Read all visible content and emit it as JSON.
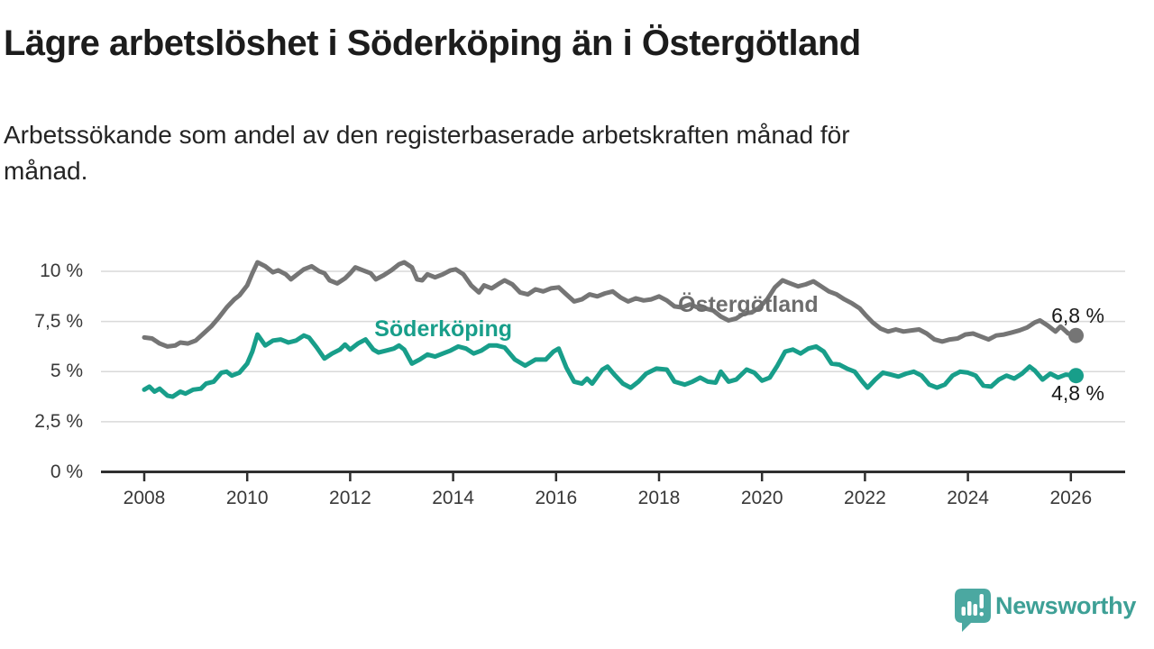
{
  "header": {
    "title": "Lägre arbetslöshet i Söderköping än i Östergötland",
    "subtitle_line1": "Arbetssökande som andel av den registerbaserade arbetskraften månad för",
    "subtitle_line2": "månad."
  },
  "branding": {
    "name": "Newsworthy",
    "text_color": "#3EA096",
    "icon": "newsworthy-speech-bubble-bar-chart-icon",
    "icon_color": "#4BA8A1"
  },
  "chart_data": {
    "type": "line",
    "unit": "%",
    "grid": true,
    "colors": {
      "gridline": "#d9d9d9",
      "axis": "#2f2f2f",
      "end_label_text": "#191919"
    },
    "x_axis": {
      "ticks": [
        2008,
        2010,
        2012,
        2014,
        2016,
        2018,
        2020,
        2022,
        2024,
        2026
      ],
      "range": [
        2007.8,
        2027.1
      ]
    },
    "y_axis": {
      "range": [
        0,
        11.7
      ],
      "ticks": [
        {
          "value": 0,
          "label": "0 %"
        },
        {
          "value": 2.5,
          "label": "2,5 %"
        },
        {
          "value": 5,
          "label": "5 %"
        },
        {
          "value": 7.5,
          "label": "7,5 %"
        },
        {
          "value": 10,
          "label": "10 %"
        }
      ]
    },
    "series": [
      {
        "name": "Östergötland",
        "color": "#757575",
        "label_color": "#6D6D6D",
        "label_pos": {
          "t": 2018.37,
          "v": 8.34
        },
        "end_label": "6,8 %",
        "end_value": 6.8,
        "end_label_side": "above",
        "points": [
          [
            2008.0,
            6.7
          ],
          [
            2008.15,
            6.65
          ],
          [
            2008.3,
            6.4
          ],
          [
            2008.45,
            6.25
          ],
          [
            2008.6,
            6.3
          ],
          [
            2008.7,
            6.45
          ],
          [
            2008.85,
            6.4
          ],
          [
            2009.0,
            6.55
          ],
          [
            2009.15,
            6.9
          ],
          [
            2009.3,
            7.25
          ],
          [
            2009.45,
            7.7
          ],
          [
            2009.6,
            8.2
          ],
          [
            2009.75,
            8.6
          ],
          [
            2009.85,
            8.8
          ],
          [
            2010.0,
            9.3
          ],
          [
            2010.1,
            9.9
          ],
          [
            2010.2,
            10.45
          ],
          [
            2010.35,
            10.25
          ],
          [
            2010.5,
            9.95
          ],
          [
            2010.6,
            10.05
          ],
          [
            2010.75,
            9.85
          ],
          [
            2010.85,
            9.6
          ],
          [
            2011.0,
            9.9
          ],
          [
            2011.1,
            10.1
          ],
          [
            2011.25,
            10.25
          ],
          [
            2011.4,
            10.0
          ],
          [
            2011.5,
            9.9
          ],
          [
            2011.6,
            9.55
          ],
          [
            2011.75,
            9.4
          ],
          [
            2011.9,
            9.65
          ],
          [
            2012.0,
            9.9
          ],
          [
            2012.1,
            10.2
          ],
          [
            2012.25,
            10.05
          ],
          [
            2012.4,
            9.9
          ],
          [
            2012.5,
            9.6
          ],
          [
            2012.65,
            9.8
          ],
          [
            2012.8,
            10.05
          ],
          [
            2012.95,
            10.35
          ],
          [
            2013.05,
            10.45
          ],
          [
            2013.2,
            10.2
          ],
          [
            2013.3,
            9.6
          ],
          [
            2013.4,
            9.55
          ],
          [
            2013.5,
            9.85
          ],
          [
            2013.65,
            9.7
          ],
          [
            2013.8,
            9.85
          ],
          [
            2013.95,
            10.05
          ],
          [
            2014.05,
            10.1
          ],
          [
            2014.2,
            9.85
          ],
          [
            2014.35,
            9.3
          ],
          [
            2014.5,
            8.95
          ],
          [
            2014.6,
            9.3
          ],
          [
            2014.75,
            9.15
          ],
          [
            2014.9,
            9.4
          ],
          [
            2015.0,
            9.55
          ],
          [
            2015.15,
            9.35
          ],
          [
            2015.3,
            8.95
          ],
          [
            2015.45,
            8.85
          ],
          [
            2015.6,
            9.1
          ],
          [
            2015.75,
            9.0
          ],
          [
            2015.9,
            9.15
          ],
          [
            2016.05,
            9.2
          ],
          [
            2016.2,
            8.85
          ],
          [
            2016.35,
            8.5
          ],
          [
            2016.5,
            8.6
          ],
          [
            2016.65,
            8.85
          ],
          [
            2016.8,
            8.75
          ],
          [
            2016.95,
            8.9
          ],
          [
            2017.1,
            9.0
          ],
          [
            2017.25,
            8.7
          ],
          [
            2017.4,
            8.5
          ],
          [
            2017.55,
            8.65
          ],
          [
            2017.7,
            8.55
          ],
          [
            2017.85,
            8.6
          ],
          [
            2018.0,
            8.75
          ],
          [
            2018.15,
            8.55
          ],
          [
            2018.3,
            8.25
          ],
          [
            2018.45,
            8.2
          ],
          [
            2018.6,
            8.35
          ],
          [
            2018.75,
            8.2
          ],
          [
            2018.9,
            8.15
          ],
          [
            2019.05,
            8.05
          ],
          [
            2019.2,
            7.75
          ],
          [
            2019.35,
            7.55
          ],
          [
            2019.5,
            7.65
          ],
          [
            2019.65,
            7.9
          ],
          [
            2019.8,
            7.95
          ],
          [
            2019.95,
            8.2
          ],
          [
            2020.1,
            8.6
          ],
          [
            2020.25,
            9.2
          ],
          [
            2020.4,
            9.55
          ],
          [
            2020.55,
            9.4
          ],
          [
            2020.7,
            9.25
          ],
          [
            2020.85,
            9.35
          ],
          [
            2021.0,
            9.5
          ],
          [
            2021.15,
            9.25
          ],
          [
            2021.3,
            9.0
          ],
          [
            2021.45,
            8.85
          ],
          [
            2021.6,
            8.6
          ],
          [
            2021.75,
            8.4
          ],
          [
            2021.9,
            8.15
          ],
          [
            2022.0,
            7.85
          ],
          [
            2022.15,
            7.45
          ],
          [
            2022.3,
            7.15
          ],
          [
            2022.45,
            7.0
          ],
          [
            2022.6,
            7.1
          ],
          [
            2022.75,
            7.0
          ],
          [
            2022.9,
            7.05
          ],
          [
            2023.05,
            7.1
          ],
          [
            2023.2,
            6.9
          ],
          [
            2023.35,
            6.6
          ],
          [
            2023.5,
            6.5
          ],
          [
            2023.65,
            6.6
          ],
          [
            2023.8,
            6.65
          ],
          [
            2023.95,
            6.85
          ],
          [
            2024.1,
            6.9
          ],
          [
            2024.25,
            6.75
          ],
          [
            2024.4,
            6.6
          ],
          [
            2024.55,
            6.8
          ],
          [
            2024.7,
            6.85
          ],
          [
            2024.85,
            6.95
          ],
          [
            2025.0,
            7.05
          ],
          [
            2025.15,
            7.2
          ],
          [
            2025.3,
            7.45
          ],
          [
            2025.4,
            7.55
          ],
          [
            2025.55,
            7.3
          ],
          [
            2025.7,
            7.0
          ],
          [
            2025.8,
            7.25
          ],
          [
            2025.95,
            6.9
          ],
          [
            2026.1,
            6.8
          ]
        ]
      },
      {
        "name": "Söderköping",
        "color": "#189E8A",
        "label_color": "#189E8A",
        "label_pos": {
          "t": 2012.47,
          "v": 7.12
        },
        "end_label": "4,8 %",
        "end_value": 4.8,
        "end_label_side": "below",
        "points": [
          [
            2008.0,
            4.1
          ],
          [
            2008.1,
            4.25
          ],
          [
            2008.2,
            4.0
          ],
          [
            2008.3,
            4.15
          ],
          [
            2008.45,
            3.8
          ],
          [
            2008.55,
            3.75
          ],
          [
            2008.7,
            4.0
          ],
          [
            2008.8,
            3.9
          ],
          [
            2008.95,
            4.1
          ],
          [
            2009.1,
            4.15
          ],
          [
            2009.2,
            4.4
          ],
          [
            2009.35,
            4.5
          ],
          [
            2009.5,
            4.95
          ],
          [
            2009.6,
            5.0
          ],
          [
            2009.7,
            4.8
          ],
          [
            2009.85,
            4.95
          ],
          [
            2010.0,
            5.4
          ],
          [
            2010.1,
            6.0
          ],
          [
            2010.2,
            6.85
          ],
          [
            2010.35,
            6.3
          ],
          [
            2010.5,
            6.55
          ],
          [
            2010.65,
            6.6
          ],
          [
            2010.8,
            6.45
          ],
          [
            2010.95,
            6.55
          ],
          [
            2011.1,
            6.8
          ],
          [
            2011.2,
            6.7
          ],
          [
            2011.35,
            6.2
          ],
          [
            2011.5,
            5.65
          ],
          [
            2011.65,
            5.9
          ],
          [
            2011.8,
            6.1
          ],
          [
            2011.9,
            6.35
          ],
          [
            2012.0,
            6.1
          ],
          [
            2012.15,
            6.4
          ],
          [
            2012.3,
            6.6
          ],
          [
            2012.45,
            6.1
          ],
          [
            2012.55,
            5.95
          ],
          [
            2012.7,
            6.05
          ],
          [
            2012.85,
            6.15
          ],
          [
            2012.95,
            6.3
          ],
          [
            2013.05,
            6.1
          ],
          [
            2013.2,
            5.4
          ],
          [
            2013.35,
            5.6
          ],
          [
            2013.5,
            5.85
          ],
          [
            2013.65,
            5.75
          ],
          [
            2013.8,
            5.9
          ],
          [
            2013.95,
            6.05
          ],
          [
            2014.1,
            6.25
          ],
          [
            2014.25,
            6.15
          ],
          [
            2014.4,
            5.9
          ],
          [
            2014.55,
            6.05
          ],
          [
            2014.7,
            6.3
          ],
          [
            2014.85,
            6.3
          ],
          [
            2015.0,
            6.2
          ],
          [
            2015.2,
            5.6
          ],
          [
            2015.4,
            5.3
          ],
          [
            2015.6,
            5.6
          ],
          [
            2015.8,
            5.6
          ],
          [
            2015.95,
            6.0
          ],
          [
            2016.05,
            6.15
          ],
          [
            2016.2,
            5.2
          ],
          [
            2016.35,
            4.5
          ],
          [
            2016.5,
            4.4
          ],
          [
            2016.6,
            4.65
          ],
          [
            2016.7,
            4.4
          ],
          [
            2016.9,
            5.1
          ],
          [
            2017.0,
            5.25
          ],
          [
            2017.15,
            4.8
          ],
          [
            2017.3,
            4.4
          ],
          [
            2017.45,
            4.2
          ],
          [
            2017.6,
            4.5
          ],
          [
            2017.75,
            4.9
          ],
          [
            2017.95,
            5.15
          ],
          [
            2018.15,
            5.1
          ],
          [
            2018.3,
            4.5
          ],
          [
            2018.5,
            4.35
          ],
          [
            2018.65,
            4.5
          ],
          [
            2018.8,
            4.7
          ],
          [
            2018.95,
            4.5
          ],
          [
            2019.1,
            4.45
          ],
          [
            2019.2,
            5.0
          ],
          [
            2019.35,
            4.5
          ],
          [
            2019.5,
            4.6
          ],
          [
            2019.7,
            5.1
          ],
          [
            2019.85,
            4.95
          ],
          [
            2020.0,
            4.55
          ],
          [
            2020.15,
            4.7
          ],
          [
            2020.3,
            5.3
          ],
          [
            2020.45,
            6.0
          ],
          [
            2020.6,
            6.1
          ],
          [
            2020.75,
            5.9
          ],
          [
            2020.9,
            6.15
          ],
          [
            2021.05,
            6.25
          ],
          [
            2021.2,
            6.0
          ],
          [
            2021.35,
            5.4
          ],
          [
            2021.5,
            5.35
          ],
          [
            2021.65,
            5.15
          ],
          [
            2021.8,
            5.0
          ],
          [
            2021.95,
            4.5
          ],
          [
            2022.05,
            4.2
          ],
          [
            2022.2,
            4.6
          ],
          [
            2022.35,
            4.95
          ],
          [
            2022.5,
            4.85
          ],
          [
            2022.65,
            4.75
          ],
          [
            2022.8,
            4.9
          ],
          [
            2022.95,
            5.0
          ],
          [
            2023.1,
            4.8
          ],
          [
            2023.25,
            4.35
          ],
          [
            2023.4,
            4.2
          ],
          [
            2023.55,
            4.35
          ],
          [
            2023.7,
            4.8
          ],
          [
            2023.85,
            5.0
          ],
          [
            2024.0,
            4.95
          ],
          [
            2024.15,
            4.8
          ],
          [
            2024.3,
            4.3
          ],
          [
            2024.45,
            4.25
          ],
          [
            2024.6,
            4.6
          ],
          [
            2024.75,
            4.8
          ],
          [
            2024.9,
            4.65
          ],
          [
            2025.05,
            4.9
          ],
          [
            2025.2,
            5.25
          ],
          [
            2025.3,
            5.05
          ],
          [
            2025.45,
            4.6
          ],
          [
            2025.6,
            4.9
          ],
          [
            2025.75,
            4.7
          ],
          [
            2025.9,
            4.85
          ],
          [
            2026.1,
            4.8
          ]
        ]
      }
    ]
  }
}
